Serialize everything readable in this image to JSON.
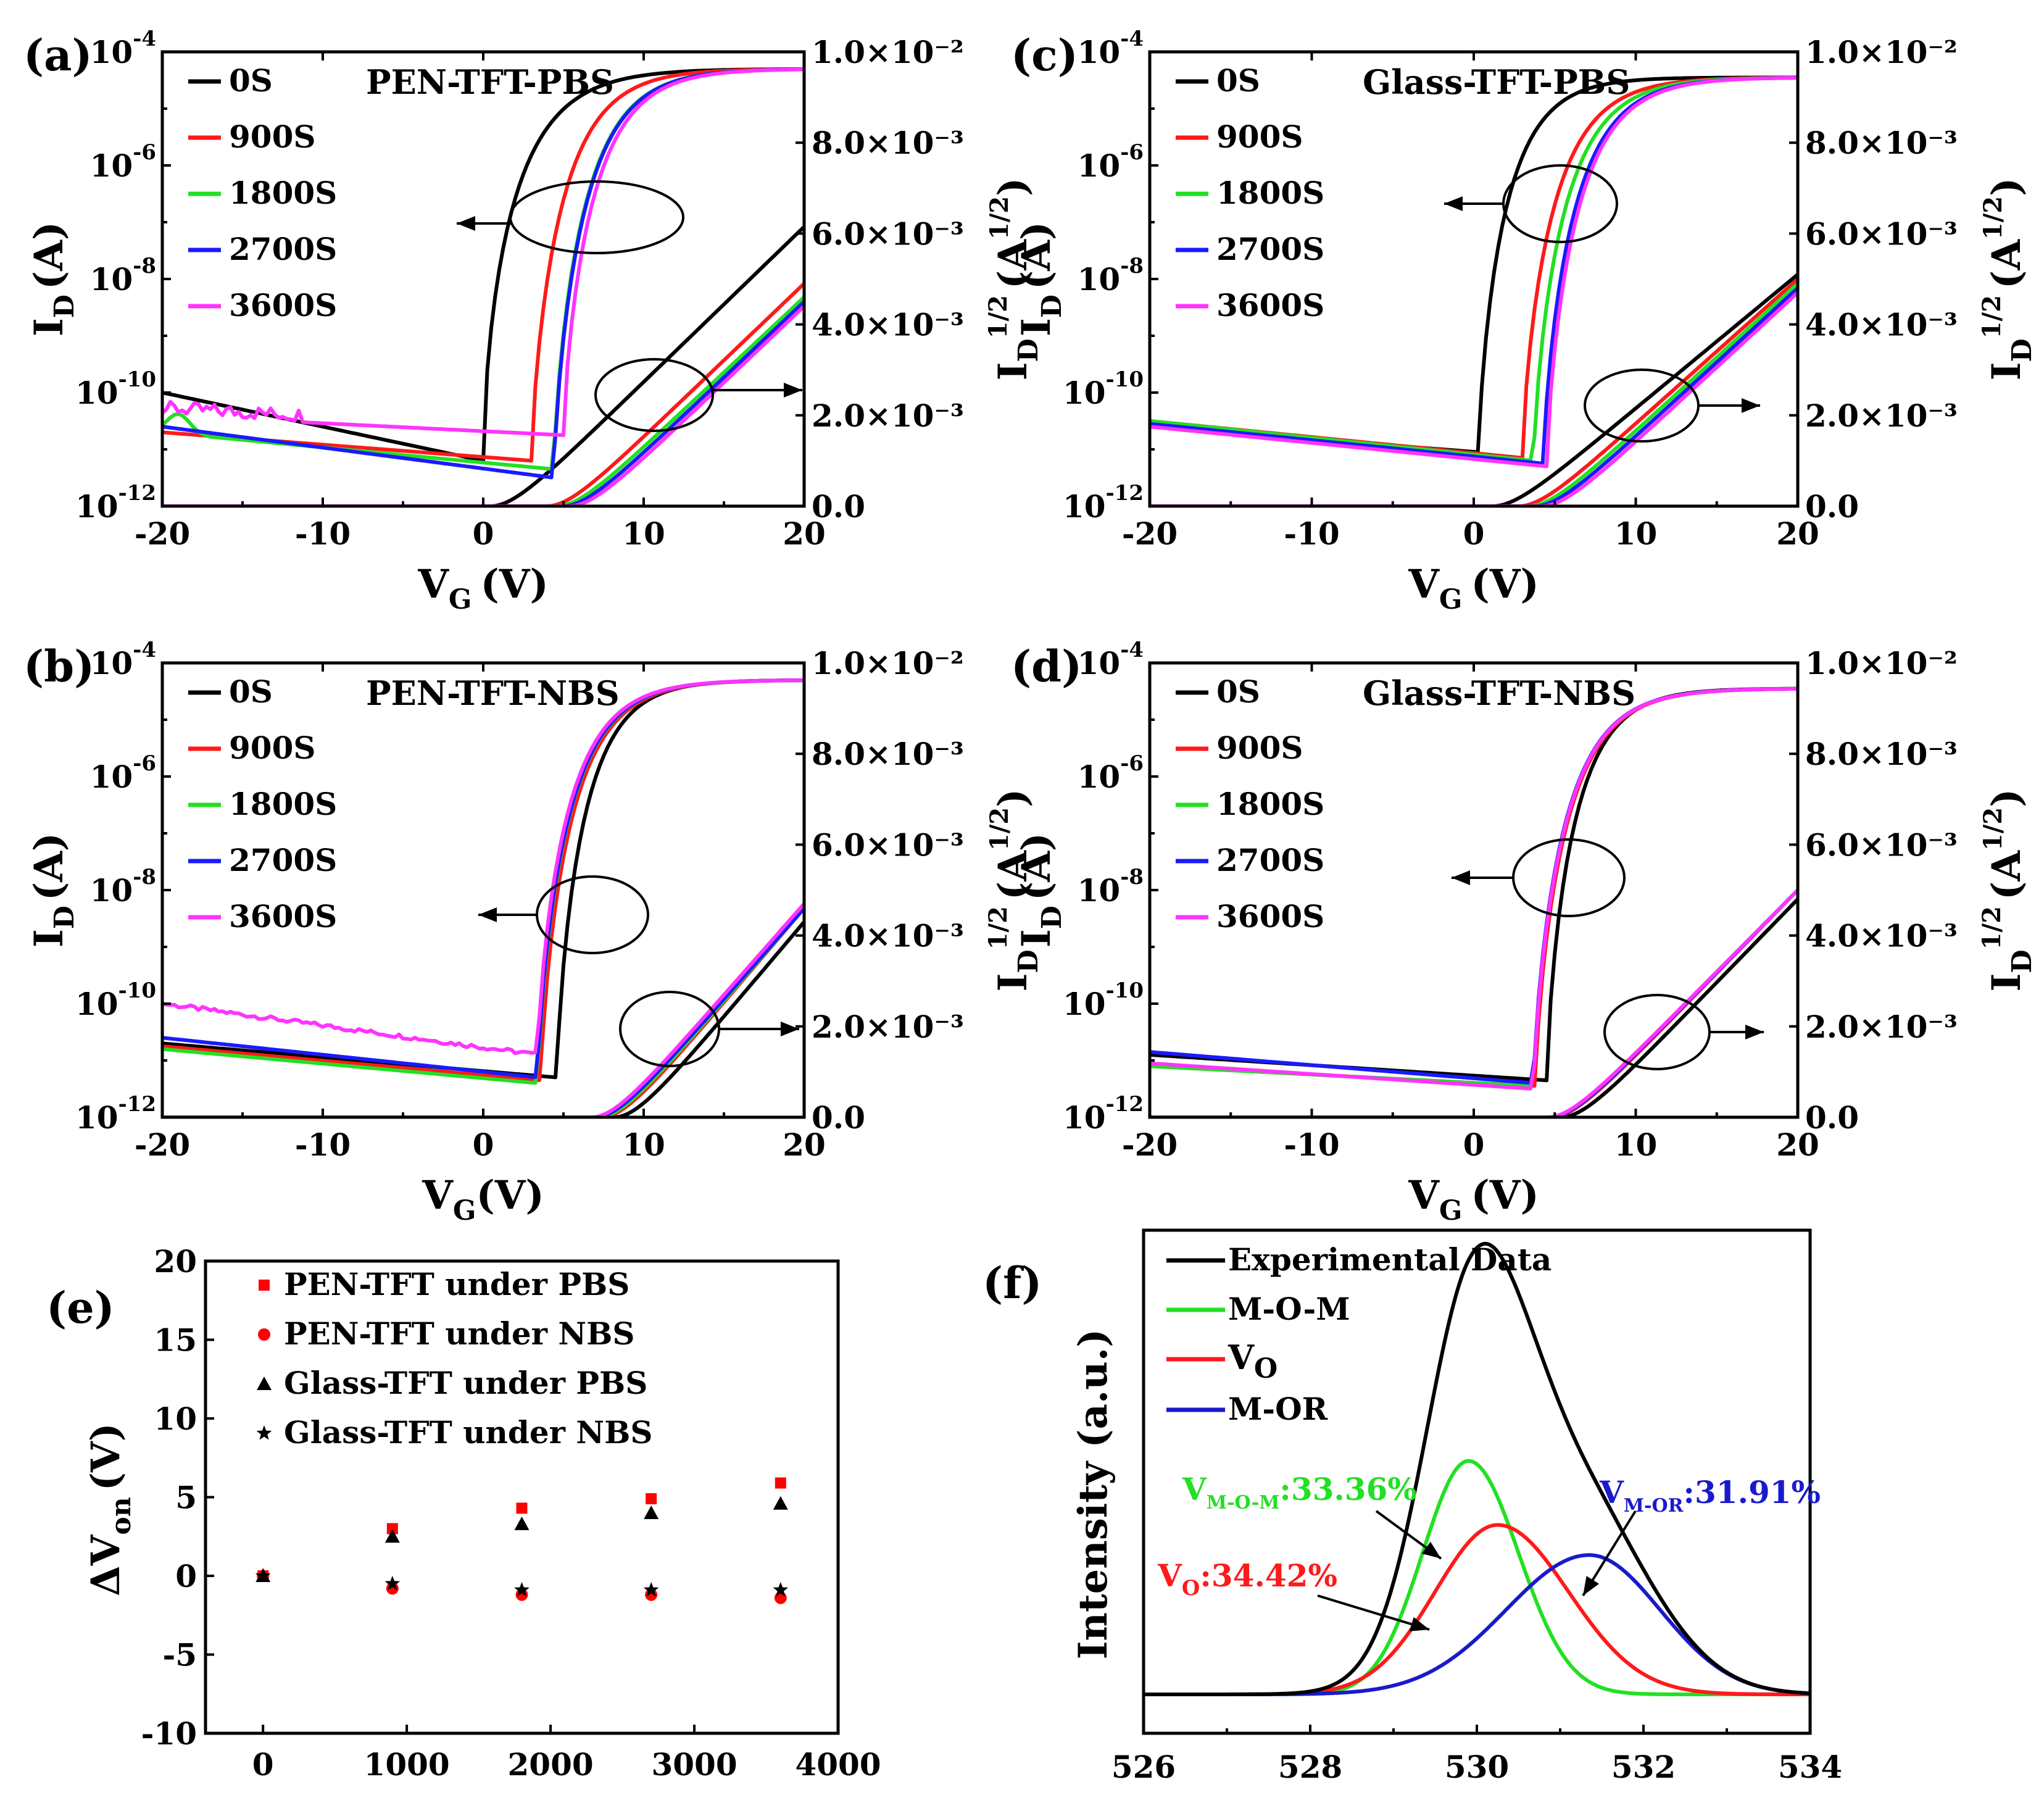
{
  "colors": {
    "0S": "#000000",
    "900S": "#ff1a1a",
    "1800S": "#22e022",
    "2700S": "#1a1aff",
    "3600S": "#ff33ff",
    "pen": "#ff0000",
    "glass": "#000000",
    "experimental": "#000000",
    "mom": "#22e022",
    "vo": "#ff1a1a",
    "mor": "#1a1acc"
  },
  "chart_data": [
    {
      "panel": "(a)",
      "type": "line",
      "title": "PEN-TFT-PBS",
      "xlabel": "V_G (V)",
      "ylabel": "I_D (A)",
      "y2label": "I_D^1/2 (A^1/2)",
      "xlim": [
        -20,
        20
      ],
      "ylim_log10": [
        -12,
        -4
      ],
      "y2lim": [
        0,
        0.01
      ],
      "xticks": [
        "-20",
        "-10",
        "0",
        "10",
        "20"
      ],
      "y2ticks": [
        "0.0",
        "2.0×10⁻³",
        "4.0×10⁻³",
        "6.0×10⁻³",
        "8.0×10⁻³",
        "1.0×10⁻²"
      ],
      "series": [
        {
          "name": "0S",
          "von": 0,
          "off_left": -10.0,
          "off_right": -11.2,
          "sqrt_vth": 0.5,
          "sqrt_end": 0.00615
        },
        {
          "name": "900S",
          "von": 3.0,
          "off_left": -10.7,
          "off_right": -11.2,
          "sqrt_vth": 4.0,
          "sqrt_end": 0.0049
        },
        {
          "name": "1800S",
          "von": 4.4,
          "off_left": -10.7,
          "off_right": -11.35,
          "sqrt_vth": 4.6,
          "sqrt_end": 0.0046
        },
        {
          "name": "2700S",
          "von": 4.4,
          "off_left": -10.6,
          "off_right": -11.5,
          "sqrt_vth": 5.0,
          "sqrt_end": 0.0045
        },
        {
          "name": "3600S",
          "von": 5.0,
          "off_left": -10.4,
          "off_right": -10.75,
          "sqrt_vth": 5.4,
          "sqrt_end": 0.0044
        }
      ]
    },
    {
      "panel": "(b)",
      "type": "line",
      "title": "PEN-TFT-NBS",
      "xlabel": "V_G(V)",
      "ylabel": "I_D (A)",
      "y2label": "I_D^1/2 (A^1/2)",
      "xlim": [
        -20,
        20
      ],
      "ylim_log10": [
        -12,
        -4
      ],
      "y2lim": [
        0,
        0.01
      ],
      "xticks": [
        "-20",
        "-10",
        "0",
        "10",
        "20"
      ],
      "y2ticks": [
        "0.0",
        "2.0×10⁻³",
        "4.0×10⁻³",
        "6.0×10⁻³",
        "8.0×10⁻³",
        "1.0×10⁻²"
      ],
      "series": [
        {
          "name": "0S",
          "von": 4.6,
          "off_left": -10.7,
          "off_right": -11.3,
          "sqrt_vth": 8.2,
          "sqrt_end": 0.0043
        },
        {
          "name": "900S",
          "von": 3.6,
          "off_left": -10.75,
          "off_right": -11.35,
          "sqrt_vth": 7.4,
          "sqrt_end": 0.0046
        },
        {
          "name": "1800S",
          "von": 3.4,
          "off_left": -10.8,
          "off_right": -11.4,
          "sqrt_vth": 7.2,
          "sqrt_end": 0.0046
        },
        {
          "name": "2700S",
          "von": 3.4,
          "off_left": -10.6,
          "off_right": -11.3,
          "sqrt_vth": 7.0,
          "sqrt_end": 0.0046
        },
        {
          "name": "3600S",
          "von": 3.4,
          "off_left": -10.0,
          "off_right": -10.9,
          "sqrt_vth": 6.8,
          "sqrt_end": 0.0047
        }
      ]
    },
    {
      "panel": "(c)",
      "type": "line",
      "title": "Glass-TFT-PBS",
      "xlabel": "V_G (V)",
      "ylabel": "I_D (A)",
      "y2label": "I_D^1/2 (A^1/2)",
      "xlim": [
        -20,
        20
      ],
      "ylim_log10": [
        -12,
        -4
      ],
      "y2lim": [
        0,
        0.01
      ],
      "xticks": [
        "-20",
        "-10",
        "0",
        "10",
        "20"
      ],
      "y2ticks": [
        "0.0",
        "2.0×10⁻³",
        "4.0×10⁻³",
        "6.0×10⁻³",
        "8.0×10⁻³",
        "1.0×10⁻²"
      ],
      "series": [
        {
          "name": "0S",
          "von": 0.3,
          "off_left": -10.6,
          "off_right": -11.05,
          "sqrt_vth": 1.2,
          "sqrt_end": 0.0051
        },
        {
          "name": "900S",
          "von": 3.0,
          "off_left": -10.5,
          "off_right": -11.15,
          "sqrt_vth": 2.8,
          "sqrt_end": 0.005
        },
        {
          "name": "1800S",
          "von": 3.7,
          "off_left": -10.5,
          "off_right": -11.2,
          "sqrt_vth": 3.4,
          "sqrt_end": 0.0049
        },
        {
          "name": "2700S",
          "von": 4.3,
          "off_left": -10.55,
          "off_right": -11.25,
          "sqrt_vth": 3.8,
          "sqrt_end": 0.0048
        },
        {
          "name": "3600S",
          "von": 4.5,
          "off_left": -10.6,
          "off_right": -11.3,
          "sqrt_vth": 4.2,
          "sqrt_end": 0.0047
        }
      ]
    },
    {
      "panel": "(d)",
      "type": "line",
      "title": "Glass-TFT-NBS",
      "xlabel": "V_G (V)",
      "ylabel": "I_D (A)",
      "y2label": "I_D^1/2 (A^1/2)",
      "xlim": [
        -20,
        20
      ],
      "ylim_log10": [
        -12,
        -4
      ],
      "y2lim": [
        0,
        0.01
      ],
      "xticks": [
        "-20",
        "-10",
        "0",
        "10",
        "20"
      ],
      "y2ticks": [
        "0.0",
        "2.0×10⁻³",
        "4.0×10⁻³",
        "6.0×10⁻³",
        "8.0×10⁻³",
        "1.0×10⁻²"
      ],
      "series": [
        {
          "name": "0S",
          "von": 4.5,
          "off_left": -10.9,
          "off_right": -11.35,
          "sqrt_vth": 5.4,
          "sqrt_end": 0.0048
        },
        {
          "name": "900S",
          "von": 3.8,
          "off_left": -11.1,
          "off_right": -11.45,
          "sqrt_vth": 4.8,
          "sqrt_end": 0.005
        },
        {
          "name": "1800S",
          "von": 3.7,
          "off_left": -11.1,
          "off_right": -11.45,
          "sqrt_vth": 4.7,
          "sqrt_end": 0.005
        },
        {
          "name": "2700S",
          "von": 3.7,
          "off_left": -10.85,
          "off_right": -11.4,
          "sqrt_vth": 4.7,
          "sqrt_end": 0.005
        },
        {
          "name": "3600S",
          "von": 3.7,
          "off_left": -11.05,
          "off_right": -11.5,
          "sqrt_vth": 4.6,
          "sqrt_end": 0.005
        }
      ]
    },
    {
      "panel": "(e)",
      "type": "scatter",
      "xlabel": "",
      "ylabel": "ΔV_on (V)",
      "xlim": [
        -400,
        4000
      ],
      "ylim": [
        -10,
        20
      ],
      "xticks": [
        "0",
        "1000",
        "2000",
        "3000",
        "4000"
      ],
      "yticks": [
        "-10",
        "-5",
        "0",
        "5",
        "10",
        "15",
        "20"
      ],
      "x": [
        0,
        900,
        1800,
        2700,
        3600
      ],
      "series": [
        {
          "name": "PEN-TFT under PBS",
          "marker": "square",
          "values": [
            0,
            3.0,
            4.3,
            4.9,
            5.9
          ]
        },
        {
          "name": "PEN-TFT under NBS",
          "marker": "circle",
          "values": [
            0,
            -0.8,
            -1.2,
            -1.2,
            -1.4
          ]
        },
        {
          "name": "Glass-TFT under PBS",
          "marker": "triangle",
          "values": [
            0,
            2.5,
            3.3,
            4.0,
            4.6
          ]
        },
        {
          "name": "Glass-TFT under NBS",
          "marker": "star",
          "values": [
            0,
            -0.5,
            -0.9,
            -0.9,
            -0.9
          ]
        }
      ]
    },
    {
      "panel": "(f)",
      "type": "line",
      "xlabel": "",
      "ylabel": "Intensity (a.u.)",
      "xlim": [
        526,
        534
      ],
      "xticks": [
        "526",
        "528",
        "530",
        "532",
        "534"
      ],
      "series": [
        {
          "name": "Experimental Data",
          "key": "experimental"
        },
        {
          "name": "M-O-M",
          "key": "mom",
          "center": 529.9,
          "height": 0.62,
          "sigma_left": 0.55,
          "sigma_right": 0.6
        },
        {
          "name": "V_O",
          "key": "vo",
          "center": 530.25,
          "height": 0.45,
          "sigma_left": 0.75,
          "sigma_right": 0.85
        },
        {
          "name": "M-OR",
          "key": "mor",
          "center": 531.35,
          "height": 0.37,
          "sigma_left": 1.0,
          "sigma_right": 0.85
        }
      ],
      "annotations": [
        {
          "label": "V_M-O-M:33.36%",
          "key": "mom"
        },
        {
          "label": "V_O:34.42%",
          "key": "vo"
        },
        {
          "label": "V_M-OR:31.91%",
          "key": "mor"
        }
      ]
    }
  ],
  "panels": {
    "a": {
      "label": "(a)",
      "title": "PEN-TFT-PBS"
    },
    "b": {
      "label": "(b)",
      "title": "PEN-TFT-NBS"
    },
    "c": {
      "label": "(c)",
      "title": "Glass-TFT-PBS"
    },
    "d": {
      "label": "(d)",
      "title": "Glass-TFT-NBS"
    },
    "e": {
      "label": "(e)"
    },
    "f": {
      "label": "(f)"
    }
  },
  "legend_transfer": [
    "0S",
    "900S",
    "1800S",
    "2700S",
    "3600S"
  ],
  "legend_e": [
    "PEN-TFT under PBS",
    "PEN-TFT under NBS",
    "Glass-TFT under PBS",
    "Glass-TFT under NBS"
  ],
  "legend_f": {
    "experimental": "Experimental Data",
    "mom": "M-O-M",
    "vo_main": "V",
    "vo_sub": "O",
    "mor": "M-OR"
  },
  "axis_text": {
    "log_base": "10",
    "log_exps": [
      "-12",
      "-10",
      "-8",
      "-6",
      "-4"
    ],
    "id_main": "I",
    "id_sub": "D",
    "unit_a": "(A)",
    "sqrt_sup": "1/2",
    "unit_sqrt_open": "(A",
    "unit_sqrt_close": ")",
    "vg_main": "V",
    "vg_sub": "G",
    "unit_v": "(V)",
    "von_main": "ΔV",
    "von_sub": "on",
    "intensity": "Intensity (a.u.)"
  },
  "annotations_f": {
    "mom_main": "V",
    "mom_sub": "M-O-M",
    "mom_val": ":33.36%",
    "vo_main": "V",
    "vo_sub": "O",
    "vo_val": ":34.42%",
    "mor_main": "V",
    "mor_sub": "M-OR",
    "mor_val": ":31.91%"
  }
}
